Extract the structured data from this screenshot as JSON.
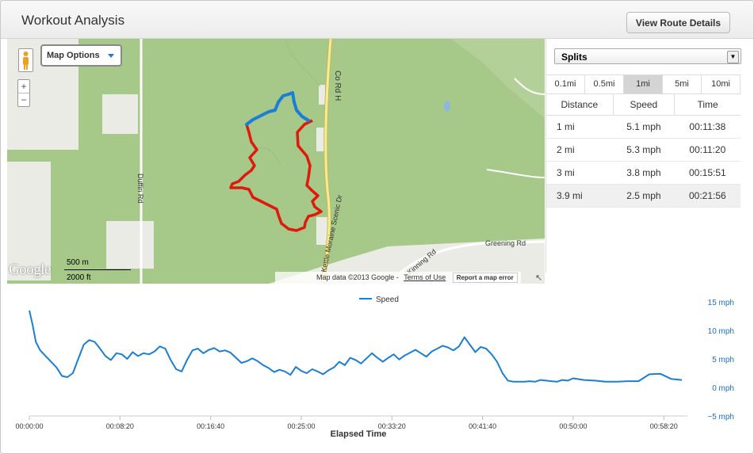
{
  "header": {
    "title": "Workout Analysis",
    "route_button": "View Route Details"
  },
  "map": {
    "options_label": "Map Options",
    "zoom_in": "+",
    "zoom_out": "−",
    "logo_text": "Google",
    "scale_metric": "500 m",
    "scale_imperial": "2000 ft",
    "attribution": "Map data ©2013 Google -",
    "terms_link": "Terms of Use",
    "report_link": "Report a map error",
    "road_labels": [
      "Co Rd H",
      "Duffin Rd",
      "Kettle Moraine Scenic Dr",
      "Greening Rd",
      "Kinning Rd"
    ],
    "colors": {
      "land": "#a6c98a",
      "clearing": "#ebebe5",
      "road": "#f4ec9a",
      "route_start": "#1a7fd4",
      "route_main": "#e0190d"
    }
  },
  "splits": {
    "select_label": "Splits",
    "distance_tabs": [
      {
        "label": "0.1mi",
        "active": false
      },
      {
        "label": "0.5mi",
        "active": false
      },
      {
        "label": "1mi",
        "active": true
      },
      {
        "label": "5mi",
        "active": false
      },
      {
        "label": "10mi",
        "active": false
      }
    ],
    "columns": [
      "Distance",
      "Speed",
      "Time"
    ],
    "rows": [
      {
        "distance": "1 mi",
        "speed": "5.1 mph",
        "time": "00:11:38"
      },
      {
        "distance": "2 mi",
        "speed": "5.3 mph",
        "time": "00:11:20"
      },
      {
        "distance": "3 mi",
        "speed": "3.8 mph",
        "time": "00:15:51"
      },
      {
        "distance": "3.9 mi",
        "speed": "2.5 mph",
        "time": "00:21:56"
      }
    ]
  },
  "chart_data": {
    "type": "line",
    "xlabel": "Elapsed Time",
    "ylabel": "",
    "x_ticks": [
      "00:00:00",
      "00:08:20",
      "00:16:40",
      "00:25:00",
      "00:33:20",
      "00:41:40",
      "00:50:00",
      "00:58:20"
    ],
    "y_ticks": [
      "15 mph",
      "10 mph",
      "5 mph",
      "0 mph",
      "−5 mph"
    ],
    "ylim": [
      -5,
      15
    ],
    "xlim_minutes": [
      0,
      60
    ],
    "grid": false,
    "legend": "top-center",
    "series": [
      {
        "name": "Speed",
        "color": "#1a7fd4",
        "x_minutes": [
          0,
          0.3,
          0.6,
          1,
          1.5,
          2,
          2.5,
          3,
          3.5,
          4,
          4.5,
          5,
          5.5,
          6,
          6.5,
          7,
          7.5,
          8,
          8.5,
          9,
          9.5,
          10,
          10.5,
          11,
          11.5,
          12,
          12.5,
          13,
          13.5,
          14,
          14.5,
          15,
          15.5,
          16,
          16.5,
          17,
          17.5,
          18,
          18.5,
          19,
          19.5,
          20,
          20.5,
          21,
          21.5,
          22,
          22.5,
          23,
          23.5,
          24,
          24.5,
          25,
          25.5,
          26,
          26.5,
          27,
          27.5,
          28,
          28.5,
          29,
          29.5,
          30,
          30.5,
          31,
          31.5,
          32,
          32.5,
          33,
          33.5,
          34,
          34.5,
          35,
          35.5,
          36,
          36.5,
          37,
          37.5,
          38,
          38.5,
          39,
          39.5,
          40,
          40.5,
          41,
          41.5,
          42,
          42.5,
          43,
          43.5,
          44,
          44.5,
          45,
          45.5,
          46,
          46.5,
          47,
          47.5,
          48,
          48.5,
          49,
          49.5,
          50,
          51,
          52,
          53,
          54,
          55,
          56,
          57,
          58,
          59,
          60
        ],
        "y_mph": [
          13.5,
          11,
          8,
          6.5,
          5.5,
          4.5,
          3.5,
          2,
          1.8,
          2.5,
          5,
          7.5,
          8.3,
          8,
          6.8,
          5.5,
          4.8,
          6,
          5.8,
          5,
          6.2,
          5.5,
          6,
          5.8,
          6.3,
          7.2,
          6.8,
          4.8,
          3.2,
          2.8,
          4.8,
          6.5,
          6.8,
          6,
          6.6,
          6.9,
          6.3,
          6.5,
          6.1,
          5.2,
          4.3,
          4.6,
          5.1,
          4.6,
          3.9,
          3.4,
          2.7,
          3.1,
          2.8,
          2.2,
          3.6,
          2.9,
          2.5,
          3.2,
          2.8,
          2.3,
          3,
          3.5,
          4.5,
          3.9,
          5.2,
          4.8,
          4.2,
          5.1,
          6,
          5.2,
          4.5,
          5.2,
          5.8,
          4.9,
          5.6,
          6.1,
          6.6,
          6,
          5.4,
          6.3,
          6.8,
          7.3,
          7,
          6.5,
          7.2,
          8.8,
          7.5,
          6.2,
          7.1,
          6.8,
          5.8,
          4.5,
          2.5,
          1.2,
          1,
          1,
          1,
          1.1,
          1,
          1.3,
          1.2,
          1.1,
          1,
          1.3,
          1.2,
          1.6,
          1.3,
          1.2,
          1,
          1,
          1.1,
          1.1,
          2.3,
          2.4,
          1.5,
          1.3
        ]
      }
    ]
  }
}
